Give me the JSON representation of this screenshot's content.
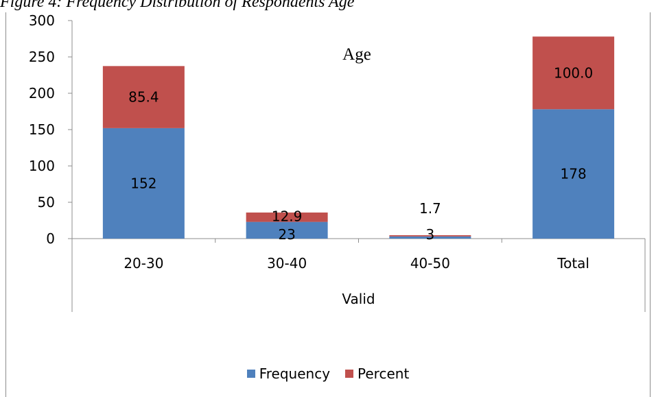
{
  "caption": "Figure 4: Frequency Distribution of Respondents Age",
  "chart_data": {
    "type": "bar",
    "stacked": true,
    "title": "Age",
    "xlabel": "Valid",
    "ylabel": "",
    "categories": [
      "20-30",
      "30-40",
      "40-50",
      "Total"
    ],
    "series": [
      {
        "name": "Frequency",
        "color": "#4f81bd",
        "values": [
          152,
          23,
          3,
          178
        ]
      },
      {
        "name": "Percent",
        "color": "#c0504d",
        "values": [
          85.4,
          12.9,
          1.7,
          100.0
        ]
      }
    ],
    "data_labels": {
      "Frequency": [
        "152",
        "23",
        "3",
        "178"
      ],
      "Percent": [
        "85.4",
        "12.9",
        "1.7",
        "100.0"
      ]
    },
    "ylim": [
      0,
      300
    ],
    "yticks": [
      "0",
      "50",
      "100",
      "150",
      "200",
      "250",
      "300"
    ],
    "grid": false,
    "legend_position": "bottom"
  }
}
